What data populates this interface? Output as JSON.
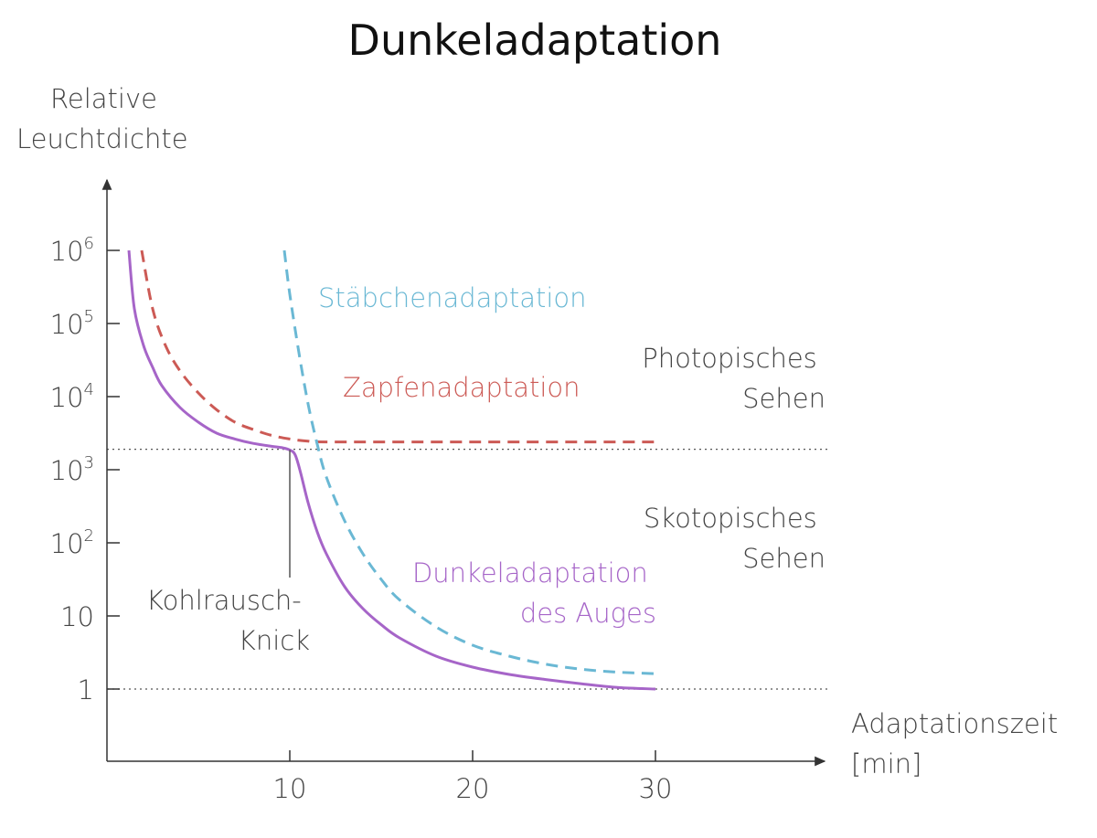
{
  "chart_data": {
    "type": "line",
    "title": "Dunkeladaptation",
    "ylabel_lines": [
      "Relative",
      "Leuchtdichte"
    ],
    "xlabel_lines": [
      "Adaptationszeit",
      "[min]"
    ],
    "xlim": [
      0,
      39
    ],
    "ylim_log10": [
      0,
      6
    ],
    "x_ticks": [
      {
        "value": 10,
        "label": "10"
      },
      {
        "value": 20,
        "label": "20"
      },
      {
        "value": 30,
        "label": "30"
      }
    ],
    "y_ticks": [
      {
        "value": 0,
        "base": "1",
        "exp": ""
      },
      {
        "value": 1,
        "base": "10",
        "exp": ""
      },
      {
        "value": 2,
        "base": "10",
        "exp": "2"
      },
      {
        "value": 3,
        "base": "10",
        "exp": "3"
      },
      {
        "value": 4,
        "base": "10",
        "exp": "4"
      },
      {
        "value": 5,
        "base": "10",
        "exp": "5"
      },
      {
        "value": 6,
        "base": "10",
        "exp": "6"
      }
    ],
    "reference_lines_log10": [
      0,
      3.28
    ],
    "series": [
      {
        "name": "Zapfenadaptation",
        "color": "#cc5a55",
        "dash": true,
        "points": [
          [
            1.9,
            6.0
          ],
          [
            2.5,
            5.2
          ],
          [
            3.2,
            4.7
          ],
          [
            4.0,
            4.35
          ],
          [
            5.0,
            4.05
          ],
          [
            6.0,
            3.82
          ],
          [
            7.0,
            3.65
          ],
          [
            8.0,
            3.55
          ],
          [
            9.0,
            3.47
          ],
          [
            10.0,
            3.42
          ],
          [
            11.0,
            3.39
          ],
          [
            12.0,
            3.38
          ],
          [
            20.0,
            3.38
          ],
          [
            30.0,
            3.38
          ]
        ]
      },
      {
        "name": "Stäbchenadaptation",
        "color": "#6ab8d4",
        "dash": true,
        "points": [
          [
            9.7,
            6.0
          ],
          [
            10.0,
            5.4
          ],
          [
            10.5,
            4.6
          ],
          [
            11.0,
            3.9
          ],
          [
            11.5,
            3.35
          ],
          [
            12.0,
            2.9
          ],
          [
            13.0,
            2.3
          ],
          [
            14.0,
            1.85
          ],
          [
            15.0,
            1.5
          ],
          [
            16.0,
            1.22
          ],
          [
            18.0,
            0.85
          ],
          [
            20.0,
            0.6
          ],
          [
            22.0,
            0.45
          ],
          [
            24.0,
            0.34
          ],
          [
            26.0,
            0.27
          ],
          [
            28.0,
            0.23
          ],
          [
            30.0,
            0.21
          ]
        ]
      },
      {
        "name": "Dunkeladaptation des Auges",
        "name_lines": [
          "Dunkeladaptation",
          "des Auges"
        ],
        "color": "#a665c8",
        "dash": false,
        "points": [
          [
            1.2,
            6.0
          ],
          [
            1.5,
            5.2
          ],
          [
            2.0,
            4.7
          ],
          [
            2.5,
            4.4
          ],
          [
            3.0,
            4.15
          ],
          [
            4.0,
            3.85
          ],
          [
            5.0,
            3.65
          ],
          [
            6.0,
            3.5
          ],
          [
            7.0,
            3.42
          ],
          [
            8.0,
            3.36
          ],
          [
            9.0,
            3.32
          ],
          [
            9.6,
            3.3
          ],
          [
            10.0,
            3.27
          ],
          [
            10.3,
            3.2
          ],
          [
            10.6,
            2.95
          ],
          [
            11.0,
            2.55
          ],
          [
            11.5,
            2.15
          ],
          [
            12.0,
            1.85
          ],
          [
            13.0,
            1.4
          ],
          [
            14.0,
            1.1
          ],
          [
            15.0,
            0.88
          ],
          [
            16.0,
            0.7
          ],
          [
            18.0,
            0.45
          ],
          [
            20.0,
            0.3
          ],
          [
            22.0,
            0.2
          ],
          [
            24.0,
            0.13
          ],
          [
            26.0,
            0.07
          ],
          [
            28.0,
            0.02
          ],
          [
            30.0,
            0.0
          ]
        ]
      }
    ],
    "annotations": [
      {
        "id": "photopic",
        "lines": [
          "Photopisches",
          "Sehen"
        ]
      },
      {
        "id": "scotopic",
        "lines": [
          "Skotopisches",
          "Sehen"
        ]
      },
      {
        "id": "kohlrausch",
        "lines": [
          "Kohlrausch-",
          "Knick"
        ],
        "x": 10
      }
    ]
  }
}
